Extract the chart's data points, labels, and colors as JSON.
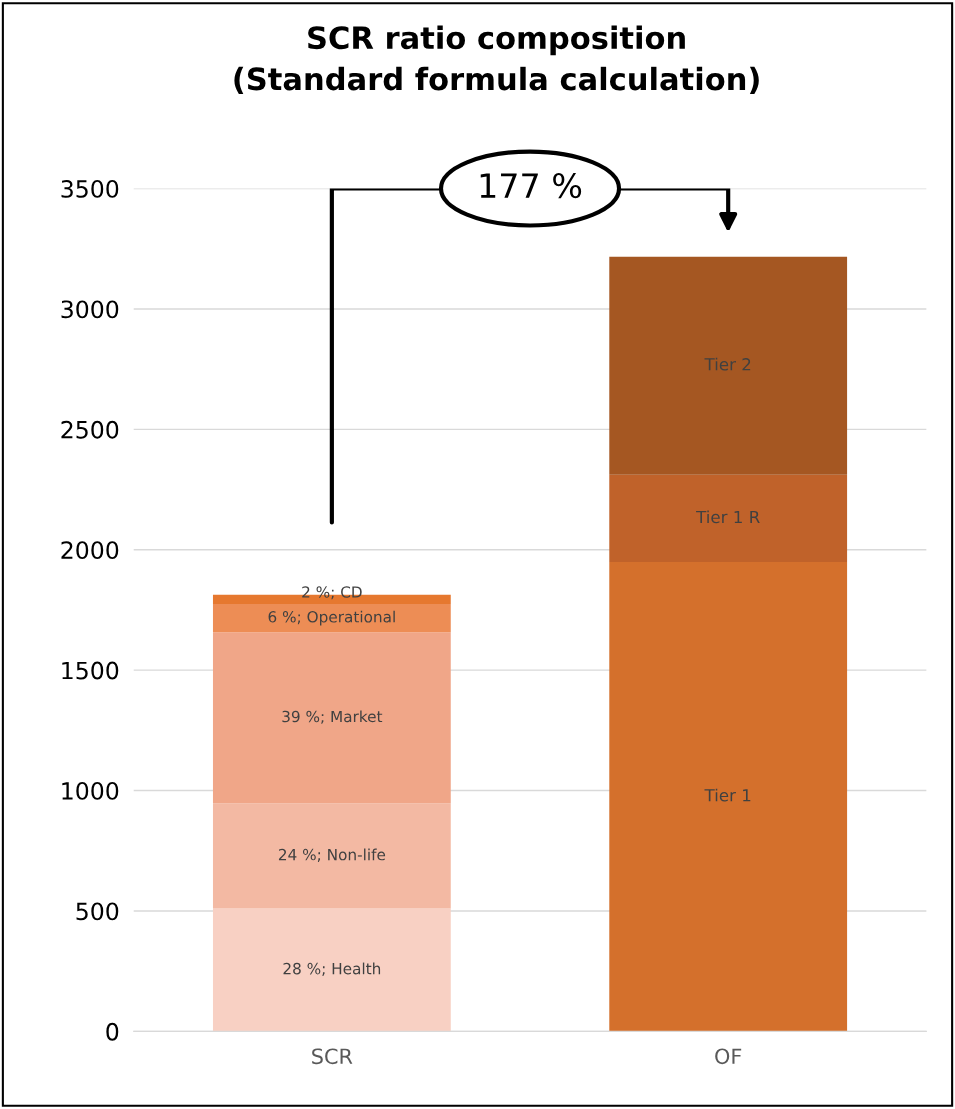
{
  "chart_data": {
    "type": "bar",
    "stacked": true,
    "title": "SCR ratio composition\n(Standard formula calculation)",
    "categories": [
      "SCR",
      "OF"
    ],
    "series": [
      {
        "color": "#f8d0c3",
        "values": [
          510,
          null
        ]
      },
      {
        "color": "#f3b9a3",
        "values": [
          437,
          null
        ]
      },
      {
        "color": "#f0a688",
        "values": [
          710,
          null
        ]
      },
      {
        "color": "#ed8d55",
        "values": [
          118,
          null
        ]
      },
      {
        "color": "#e6782f",
        "values": [
          38,
          null
        ]
      },
      {
        "color": "#d4702c",
        "values": [
          null,
          1949
        ],
        "value_labels": [
          null,
          "Tier 1"
        ]
      },
      {
        "color": "#c0622a",
        "values": [
          null,
          362
        ],
        "value_labels": [
          null,
          "Tier 1 R"
        ]
      },
      {
        "color": "#a55722",
        "values": [
          null,
          906
        ],
        "value_labels": [
          null,
          "Tier 2"
        ]
      }
    ],
    "annotations": [
      "177 %",
      "28 %; Health",
      "24 %; Non-life",
      "39 %; Market",
      "6 %; Operational",
      "2 %; CD"
    ],
    "ylim": [
      0,
      3500
    ],
    "yticks": [
      0,
      500,
      1000,
      1500,
      2000,
      2500,
      3000,
      3500
    ],
    "grid": "y",
    "legend": false
  }
}
